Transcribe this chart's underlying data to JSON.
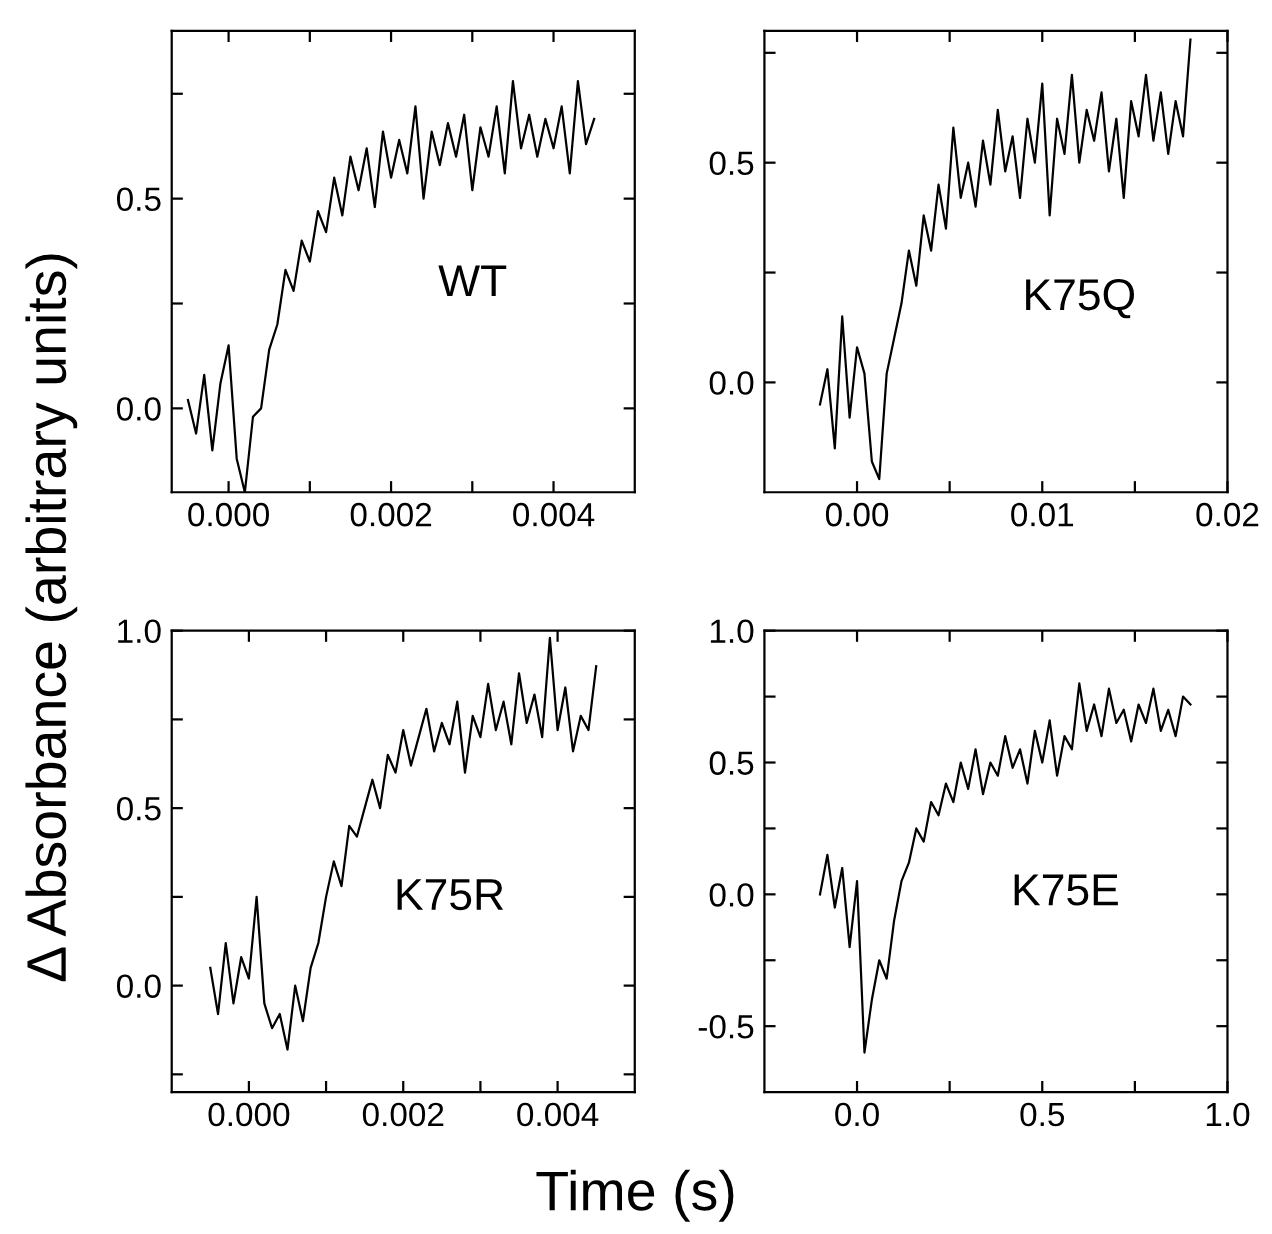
{
  "chart_data": [
    {
      "type": "line",
      "ylabel": "Δ Absorbance (arbitrary units)",
      "xlabel": "Time (s)",
      "annotations": [
        "WT"
      ],
      "xlim": [
        -0.0007,
        0.005
      ],
      "ylim": [
        -0.2,
        0.9
      ],
      "xticks": [
        {
          "value": 0.0,
          "label": "0.000"
        },
        {
          "value": 0.001,
          "label": null
        },
        {
          "value": 0.002,
          "label": "0.002"
        },
        {
          "value": 0.003,
          "label": null
        },
        {
          "value": 0.004,
          "label": "0.004"
        }
      ],
      "yticks": [
        {
          "value": 0.0,
          "label": "0.0"
        },
        {
          "value": 0.25,
          "label": null
        },
        {
          "value": 0.5,
          "label": "0.5"
        },
        {
          "value": 0.75,
          "label": null
        }
      ],
      "grid": false,
      "legend": false,
      "series": [
        {
          "color": "#000000",
          "x": [
            -0.0005,
            -0.0004,
            -0.0003,
            -0.0002,
            -0.0001,
            0.0,
            0.0001,
            0.0002,
            0.0003,
            0.0004,
            0.0005,
            0.0006,
            0.0007,
            0.0008,
            0.0009,
            0.001,
            0.0011,
            0.0012,
            0.0013,
            0.0014,
            0.0015,
            0.0016,
            0.0017,
            0.0018,
            0.0019,
            0.002,
            0.0021,
            0.0022,
            0.0023,
            0.0024,
            0.0025,
            0.0026,
            0.0027,
            0.0028,
            0.0029,
            0.003,
            0.0031,
            0.0032,
            0.0033,
            0.0034,
            0.0035,
            0.0036,
            0.0037,
            0.0038,
            0.0039,
            0.004,
            0.0041,
            0.0042,
            0.0043,
            0.0044,
            0.0045
          ],
          "values": [
            0.02,
            -0.06,
            0.08,
            -0.1,
            0.06,
            0.15,
            -0.12,
            -0.2,
            -0.02,
            0.0,
            0.14,
            0.2,
            0.33,
            0.28,
            0.4,
            0.35,
            0.47,
            0.42,
            0.55,
            0.46,
            0.6,
            0.52,
            0.62,
            0.48,
            0.66,
            0.55,
            0.64,
            0.56,
            0.72,
            0.5,
            0.66,
            0.58,
            0.68,
            0.6,
            0.7,
            0.52,
            0.67,
            0.6,
            0.72,
            0.56,
            0.78,
            0.62,
            0.7,
            0.6,
            0.69,
            0.62,
            0.72,
            0.56,
            0.78,
            0.63,
            0.69
          ]
        }
      ]
    },
    {
      "type": "line",
      "annotations": [
        "K75Q"
      ],
      "xlim": [
        -0.005,
        0.02
      ],
      "ylim": [
        -0.25,
        0.8
      ],
      "xticks": [
        {
          "value": 0.0,
          "label": "0.00"
        },
        {
          "value": 0.005,
          "label": null
        },
        {
          "value": 0.01,
          "label": "0.01"
        },
        {
          "value": 0.015,
          "label": null
        },
        {
          "value": 0.02,
          "label": "0.02"
        }
      ],
      "yticks": [
        {
          "value": 0.0,
          "label": "0.0"
        },
        {
          "value": 0.25,
          "label": null
        },
        {
          "value": 0.5,
          "label": "0.5"
        },
        {
          "value": 0.75,
          "label": null
        }
      ],
      "grid": false,
      "legend": false,
      "series": [
        {
          "color": "#000000",
          "x": [
            -0.002,
            -0.0016,
            -0.0012,
            -0.0008,
            -0.0004,
            0.0,
            0.0004,
            0.0008,
            0.0012,
            0.0016,
            0.002,
            0.0024,
            0.0028,
            0.0032,
            0.0036,
            0.004,
            0.0044,
            0.0048,
            0.0052,
            0.0056,
            0.006,
            0.0064,
            0.0068,
            0.0072,
            0.0076,
            0.008,
            0.0084,
            0.0088,
            0.0092,
            0.0096,
            0.01,
            0.0104,
            0.0108,
            0.0112,
            0.0116,
            0.012,
            0.0124,
            0.0128,
            0.0132,
            0.0136,
            0.014,
            0.0144,
            0.0148,
            0.0152,
            0.0156,
            0.016,
            0.0164,
            0.0168,
            0.0172,
            0.0176,
            0.018
          ],
          "values": [
            -0.05,
            0.03,
            -0.15,
            0.15,
            -0.08,
            0.08,
            0.02,
            -0.18,
            -0.22,
            0.02,
            0.1,
            0.18,
            0.3,
            0.22,
            0.38,
            0.3,
            0.45,
            0.35,
            0.58,
            0.42,
            0.5,
            0.4,
            0.55,
            0.45,
            0.62,
            0.48,
            0.56,
            0.42,
            0.6,
            0.5,
            0.68,
            0.38,
            0.6,
            0.52,
            0.7,
            0.5,
            0.62,
            0.55,
            0.66,
            0.48,
            0.6,
            0.42,
            0.64,
            0.56,
            0.7,
            0.55,
            0.66,
            0.52,
            0.64,
            0.56,
            0.78
          ]
        }
      ]
    },
    {
      "type": "line",
      "annotations": [
        "K75R"
      ],
      "xlim": [
        -0.001,
        0.005
      ],
      "ylim": [
        -0.3,
        1.0
      ],
      "xticks": [
        {
          "value": 0.0,
          "label": "0.000"
        },
        {
          "value": 0.001,
          "label": null
        },
        {
          "value": 0.002,
          "label": "0.002"
        },
        {
          "value": 0.003,
          "label": null
        },
        {
          "value": 0.004,
          "label": "0.004"
        }
      ],
      "yticks": [
        {
          "value": -0.25,
          "label": null
        },
        {
          "value": 0.0,
          "label": "0.0"
        },
        {
          "value": 0.25,
          "label": null
        },
        {
          "value": 0.5,
          "label": "0.5"
        },
        {
          "value": 0.75,
          "label": null
        },
        {
          "value": 1.0,
          "label": "1.0"
        }
      ],
      "grid": false,
      "legend": false,
      "series": [
        {
          "color": "#000000",
          "x": [
            -0.0005,
            -0.0004,
            -0.0003,
            -0.0002,
            -0.0001,
            0.0,
            0.0001,
            0.0002,
            0.0003,
            0.0004,
            0.0005,
            0.0006,
            0.0007,
            0.0008,
            0.0009,
            0.001,
            0.0011,
            0.0012,
            0.0013,
            0.0014,
            0.0015,
            0.0016,
            0.0017,
            0.0018,
            0.0019,
            0.002,
            0.0021,
            0.0022,
            0.0023,
            0.0024,
            0.0025,
            0.0026,
            0.0027,
            0.0028,
            0.0029,
            0.003,
            0.0031,
            0.0032,
            0.0033,
            0.0034,
            0.0035,
            0.0036,
            0.0037,
            0.0038,
            0.0039,
            0.004,
            0.0041,
            0.0042,
            0.0043,
            0.0044,
            0.0045
          ],
          "values": [
            0.05,
            -0.08,
            0.12,
            -0.05,
            0.08,
            0.02,
            0.25,
            -0.05,
            -0.12,
            -0.08,
            -0.18,
            0.0,
            -0.1,
            0.05,
            0.12,
            0.25,
            0.35,
            0.28,
            0.45,
            0.42,
            0.5,
            0.58,
            0.5,
            0.65,
            0.6,
            0.72,
            0.62,
            0.7,
            0.78,
            0.66,
            0.74,
            0.68,
            0.8,
            0.6,
            0.76,
            0.7,
            0.85,
            0.72,
            0.8,
            0.68,
            0.88,
            0.74,
            0.82,
            0.7,
            0.98,
            0.72,
            0.84,
            0.66,
            0.76,
            0.72,
            0.9
          ]
        }
      ]
    },
    {
      "type": "line",
      "annotations": [
        "K75E"
      ],
      "xlim": [
        -0.25,
        1.0
      ],
      "ylim": [
        -0.75,
        1.0
      ],
      "xticks": [
        {
          "value": 0.0,
          "label": "0.0"
        },
        {
          "value": 0.25,
          "label": null
        },
        {
          "value": 0.5,
          "label": "0.5"
        },
        {
          "value": 0.75,
          "label": null
        },
        {
          "value": 1.0,
          "label": "1.0"
        }
      ],
      "yticks": [
        {
          "value": -0.5,
          "label": "-0.5"
        },
        {
          "value": -0.25,
          "label": null
        },
        {
          "value": 0.0,
          "label": "0.0"
        },
        {
          "value": 0.25,
          "label": null
        },
        {
          "value": 0.5,
          "label": "0.5"
        },
        {
          "value": 0.75,
          "label": null
        },
        {
          "value": 1.0,
          "label": "1.0"
        }
      ],
      "grid": false,
      "legend": false,
      "series": [
        {
          "color": "#000000",
          "x": [
            -0.1,
            -0.08,
            -0.06,
            -0.04,
            -0.02,
            0.0,
            0.02,
            0.04,
            0.06,
            0.08,
            0.1,
            0.12,
            0.14,
            0.16,
            0.18,
            0.2,
            0.22,
            0.24,
            0.26,
            0.28,
            0.3,
            0.32,
            0.34,
            0.36,
            0.38,
            0.4,
            0.42,
            0.44,
            0.46,
            0.48,
            0.5,
            0.52,
            0.54,
            0.56,
            0.58,
            0.6,
            0.62,
            0.64,
            0.66,
            0.68,
            0.7,
            0.72,
            0.74,
            0.76,
            0.78,
            0.8,
            0.82,
            0.84,
            0.86,
            0.88,
            0.9
          ],
          "values": [
            0.0,
            0.15,
            -0.05,
            0.1,
            -0.2,
            0.05,
            -0.6,
            -0.4,
            -0.25,
            -0.32,
            -0.1,
            0.05,
            0.12,
            0.25,
            0.2,
            0.35,
            0.3,
            0.42,
            0.35,
            0.5,
            0.4,
            0.55,
            0.38,
            0.5,
            0.45,
            0.6,
            0.48,
            0.55,
            0.42,
            0.62,
            0.5,
            0.66,
            0.45,
            0.6,
            0.55,
            0.8,
            0.62,
            0.72,
            0.6,
            0.78,
            0.65,
            0.7,
            0.58,
            0.72,
            0.65,
            0.78,
            0.62,
            0.7,
            0.6,
            0.75,
            0.72
          ]
        }
      ]
    }
  ]
}
